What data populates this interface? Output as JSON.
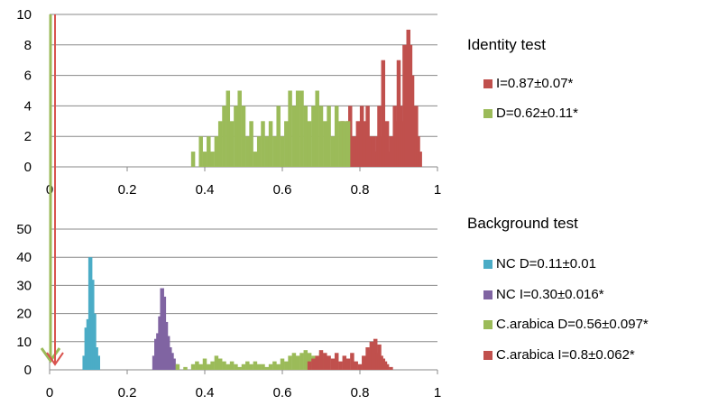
{
  "colors": {
    "identity_I": "#c0504d",
    "identity_D": "#9bbb59",
    "background_NC_D": "#4bacc6",
    "background_NC_I": "#8064a2",
    "background_CA_D": "#9bbb59",
    "background_CA_I": "#c0504d",
    "arrow_green": "#9bbb59",
    "arrow_red": "#d9534f",
    "grid": "#888888"
  },
  "chart_data": [
    {
      "type": "bar",
      "title": "",
      "xlabel": "",
      "ylabel": "",
      "xlim": [
        0,
        1
      ],
      "ylim": [
        0,
        10
      ],
      "x_ticks": [
        "0",
        "0.2",
        "0.4",
        "0.6",
        "0.8",
        "1"
      ],
      "y_ticks": [
        "0",
        "2",
        "4",
        "6",
        "8",
        "10"
      ],
      "legend_title": "Identity test",
      "legend_position": "right",
      "series": [
        {
          "name": "I=0.87±0.07*",
          "color_key": "identity_I",
          "x": [
            0.755,
            0.76,
            0.765,
            0.77,
            0.775,
            0.78,
            0.785,
            0.79,
            0.795,
            0.8,
            0.805,
            0.81,
            0.815,
            0.82,
            0.825,
            0.83,
            0.835,
            0.84,
            0.845,
            0.85,
            0.855,
            0.86,
            0.865,
            0.87,
            0.875,
            0.88,
            0.885,
            0.89,
            0.895,
            0.9,
            0.905,
            0.91,
            0.915,
            0.92,
            0.925,
            0.93,
            0.935,
            0.94,
            0.945,
            0.95,
            0.955
          ],
          "values": [
            3,
            2,
            2,
            3,
            4,
            2,
            1,
            2,
            3,
            2,
            4,
            3,
            2,
            4,
            2,
            1,
            2,
            1,
            2,
            4,
            2,
            7,
            2,
            3,
            1,
            2,
            2,
            4,
            3,
            7,
            4,
            3,
            8,
            7,
            9,
            8,
            6,
            4,
            4,
            2,
            1
          ]
        },
        {
          "name": "D=0.62±0.11*",
          "color_key": "identity_D",
          "x": [
            0.37,
            0.39,
            0.4,
            0.41,
            0.42,
            0.43,
            0.44,
            0.45,
            0.46,
            0.47,
            0.48,
            0.49,
            0.5,
            0.51,
            0.52,
            0.53,
            0.54,
            0.55,
            0.56,
            0.57,
            0.58,
            0.59,
            0.6,
            0.61,
            0.62,
            0.63,
            0.64,
            0.65,
            0.66,
            0.67,
            0.68,
            0.69,
            0.7,
            0.71,
            0.72,
            0.73,
            0.74,
            0.75,
            0.76,
            0.77
          ],
          "values": [
            1,
            2,
            1,
            2,
            1,
            2,
            3,
            4,
            5,
            3,
            4,
            5,
            4,
            2,
            3,
            1,
            2,
            3,
            2,
            3,
            2,
            4,
            2,
            3,
            5,
            4,
            5,
            5,
            4,
            3,
            4,
            5,
            4,
            3,
            4,
            2,
            4,
            3,
            3,
            3
          ]
        }
      ]
    },
    {
      "type": "bar",
      "title": "",
      "xlabel": "",
      "ylabel": "",
      "xlim": [
        0,
        1
      ],
      "ylim": [
        0,
        50
      ],
      "x_ticks": [
        "0",
        "0.2",
        "0.4",
        "0.6",
        "0.8",
        "1"
      ],
      "y_ticks": [
        "0",
        "10",
        "20",
        "30",
        "40",
        "50"
      ],
      "legend_title": "Background test",
      "legend_position": "right",
      "series": [
        {
          "name": "NC D=0.11±0.01",
          "color_key": "background_NC_D",
          "x": [
            0.09,
            0.095,
            0.1,
            0.105,
            0.11,
            0.115,
            0.12,
            0.125
          ],
          "values": [
            5,
            15,
            18,
            40,
            32,
            20,
            8,
            5
          ]
        },
        {
          "name": "NC I=0.30±0.016*",
          "color_key": "background_NC_I",
          "x": [
            0.27,
            0.275,
            0.28,
            0.285,
            0.29,
            0.295,
            0.3,
            0.305,
            0.31,
            0.315,
            0.32,
            0.325
          ],
          "values": [
            5,
            11,
            13,
            19,
            29,
            26,
            17,
            12,
            8,
            6,
            4,
            2
          ]
        },
        {
          "name": "C.arabica D=0.56±0.097*",
          "color_key": "background_CA_D",
          "x": [
            0.33,
            0.35,
            0.37,
            0.38,
            0.39,
            0.4,
            0.41,
            0.42,
            0.43,
            0.44,
            0.45,
            0.46,
            0.47,
            0.48,
            0.49,
            0.5,
            0.51,
            0.52,
            0.53,
            0.54,
            0.55,
            0.56,
            0.57,
            0.58,
            0.59,
            0.6,
            0.61,
            0.62,
            0.63,
            0.64,
            0.65,
            0.66,
            0.67,
            0.68,
            0.69,
            0.7,
            0.71
          ],
          "values": [
            2,
            1,
            2,
            3,
            2,
            4,
            2,
            3,
            5,
            4,
            3,
            2,
            3,
            2,
            1,
            2,
            3,
            2,
            3,
            2,
            2,
            1,
            2,
            3,
            2,
            4,
            3,
            5,
            6,
            5,
            6,
            7,
            6,
            5,
            4,
            6,
            4
          ]
        },
        {
          "name": "C.arabica I=0.8±0.062*",
          "color_key": "background_CA_I",
          "x": [
            0.67,
            0.68,
            0.69,
            0.7,
            0.71,
            0.72,
            0.73,
            0.74,
            0.75,
            0.76,
            0.77,
            0.78,
            0.79,
            0.8,
            0.81,
            0.82,
            0.825,
            0.83,
            0.835,
            0.84,
            0.845,
            0.85,
            0.855,
            0.86,
            0.865,
            0.87,
            0.88
          ],
          "values": [
            3,
            4,
            5,
            7,
            6,
            5,
            4,
            6,
            3,
            5,
            4,
            6,
            3,
            2,
            5,
            8,
            7,
            10,
            9,
            11,
            6,
            9,
            5,
            4,
            3,
            2,
            1
          ]
        }
      ]
    }
  ]
}
